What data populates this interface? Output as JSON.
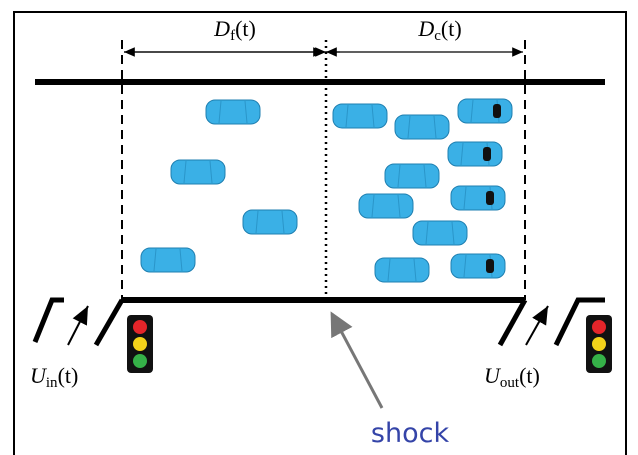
{
  "labels": {
    "free_length": {
      "symbol": "D",
      "sub": "f",
      "arg": "(t)"
    },
    "congested_length": {
      "symbol": "D",
      "sub": "c",
      "arg": "(t)"
    },
    "inflow": {
      "symbol": "U",
      "sub": "in",
      "arg": "(t)"
    },
    "outflow": {
      "symbol": "U",
      "sub": "out",
      "arg": "(t)"
    },
    "shock": "shock"
  }
}
